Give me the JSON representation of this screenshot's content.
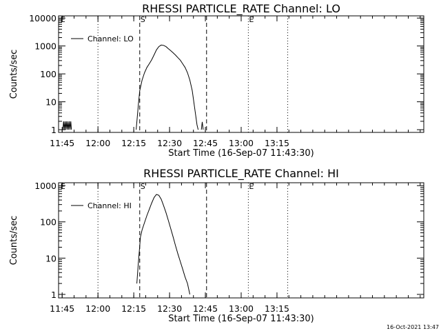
{
  "colors": {
    "background": "#ffffff",
    "ink": "#000000"
  },
  "timestamp": "16-Oct-2021 13:47",
  "chart_data": [
    {
      "type": "line",
      "title": "RHESSI PARTICLE_RATE Channel: LO",
      "xlabel": "Start Time (16-Sep-07 11:43:30)",
      "ylabel": "Counts/sec",
      "yscale": "log",
      "xlim_min": [
        0,
        153
      ],
      "ylim": [
        0.8,
        12000
      ],
      "x_ticks_min": [
        1.5,
        16.5,
        31.5,
        46.5,
        61.5,
        76.5,
        91.5
      ],
      "x_tick_labels": [
        "11:45",
        "12:00",
        "12:15",
        "12:30",
        "12:45",
        "13:00",
        "13:15"
      ],
      "y_ticks": [
        1,
        10,
        100,
        1000,
        10000
      ],
      "y_tick_labels": [
        "1",
        "10",
        "100",
        "1000",
        "10000"
      ],
      "legend": {
        "label": "Channel: LO",
        "position": "top-left"
      },
      "markers": [
        {
          "label": "E",
          "x_min": 0.5,
          "style": "none"
        },
        {
          "label": "S",
          "x_min": 34.0,
          "style": "dashed"
        },
        {
          "label": "",
          "x_min": 62.0,
          "style": "dashed"
        },
        {
          "label": "E",
          "x_min": 79.5,
          "style": "none"
        }
      ],
      "dotted_lines_min": [
        16.5,
        79.5,
        96.0
      ],
      "series": [
        {
          "name": "Channel: LO",
          "segments": [
            [
              [
                1.8,
                1
              ],
              [
                2.1,
                2
              ],
              [
                2.4,
                1
              ],
              [
                2.7,
                2
              ],
              [
                3.0,
                1
              ],
              [
                3.3,
                2
              ],
              [
                3.6,
                1
              ],
              [
                3.9,
                2
              ],
              [
                4.2,
                1
              ],
              [
                4.5,
                2
              ],
              [
                4.8,
                1
              ],
              [
                5.1,
                2
              ],
              [
                5.4,
                1
              ]
            ],
            [
              [
                32.5,
                1
              ],
              [
                33.0,
                3
              ],
              [
                33.5,
                9
              ],
              [
                34.0,
                25
              ],
              [
                35.0,
                60
              ],
              [
                36.0,
                110
              ],
              [
                37.0,
                170
              ],
              [
                38.0,
                230
              ],
              [
                39.0,
                320
              ],
              [
                40.0,
                480
              ],
              [
                41.0,
                720
              ],
              [
                42.0,
                950
              ],
              [
                43.0,
                1080
              ],
              [
                44.0,
                1050
              ],
              [
                45.0,
                950
              ],
              [
                46.0,
                800
              ],
              [
                47.0,
                680
              ],
              [
                48.0,
                570
              ],
              [
                49.0,
                470
              ],
              [
                50.0,
                380
              ],
              [
                51.0,
                310
              ],
              [
                52.0,
                230
              ],
              [
                53.0,
                170
              ],
              [
                54.0,
                110
              ],
              [
                55.0,
                60
              ],
              [
                56.0,
                25
              ],
              [
                57.0,
                6
              ],
              [
                58.0,
                1.5
              ],
              [
                58.5,
                1
              ]
            ],
            [
              [
                59.8,
                1
              ],
              [
                60.2,
                1.9
              ],
              [
                60.6,
                1
              ]
            ]
          ]
        }
      ]
    },
    {
      "type": "line",
      "title": "RHESSI PARTICLE_RATE Channel: HI",
      "xlabel": "Start Time (16-Sep-07 11:43:30)",
      "ylabel": "Counts/sec",
      "yscale": "log",
      "xlim_min": [
        0,
        153
      ],
      "ylim": [
        0.8,
        1200
      ],
      "x_ticks_min": [
        1.5,
        16.5,
        31.5,
        46.5,
        61.5,
        76.5,
        91.5
      ],
      "x_tick_labels": [
        "11:45",
        "12:00",
        "12:15",
        "12:30",
        "12:45",
        "13:00",
        "13:15"
      ],
      "y_ticks": [
        1,
        10,
        100,
        1000
      ],
      "y_tick_labels": [
        "1",
        "10",
        "100",
        "1000"
      ],
      "legend": {
        "label": "Channel: HI",
        "position": "top-left"
      },
      "markers": [
        {
          "label": "E",
          "x_min": 0.5,
          "style": "none"
        },
        {
          "label": "S",
          "x_min": 34.0,
          "style": "dashed"
        },
        {
          "label": "",
          "x_min": 62.0,
          "style": "dashed"
        },
        {
          "label": "E",
          "x_min": 79.5,
          "style": "none"
        }
      ],
      "dotted_lines_min": [
        16.5,
        79.5,
        96.0
      ],
      "series": [
        {
          "name": "Channel: HI",
          "segments": [
            [
              [
                32.8,
                2
              ],
              [
                33.3,
                6
              ],
              [
                33.8,
                15
              ],
              [
                34.3,
                38
              ],
              [
                35.0,
                60
              ],
              [
                36.0,
                95
              ],
              [
                37.0,
                150
              ],
              [
                38.0,
                220
              ],
              [
                39.0,
                330
              ],
              [
                40.0,
                470
              ],
              [
                41.0,
                570
              ],
              [
                42.0,
                540
              ],
              [
                43.0,
                420
              ],
              [
                44.0,
                280
              ],
              [
                45.0,
                180
              ],
              [
                46.0,
                110
              ],
              [
                47.0,
                65
              ],
              [
                48.0,
                38
              ],
              [
                49.0,
                22
              ],
              [
                50.0,
                13
              ],
              [
                51.0,
                8
              ],
              [
                52.0,
                5
              ],
              [
                53.0,
                3
              ],
              [
                54.0,
                2
              ],
              [
                55.0,
                1
              ]
            ]
          ]
        }
      ]
    }
  ]
}
